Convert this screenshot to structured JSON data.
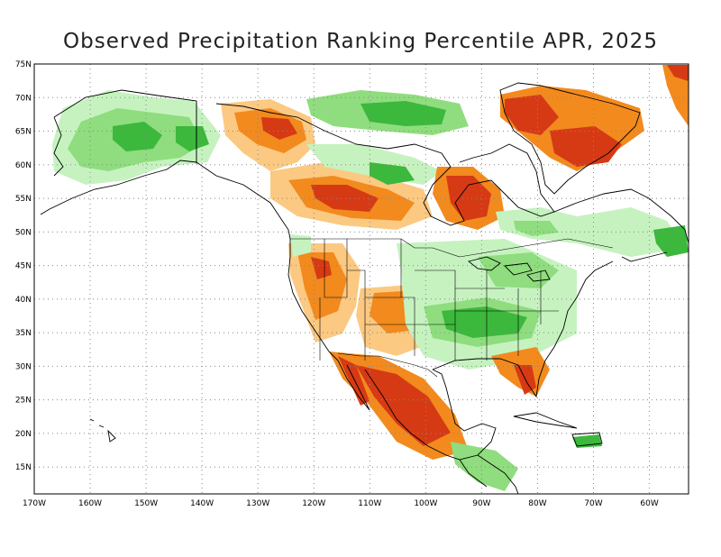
{
  "title": "Observed Precipitation Ranking Percentile APR, 2025",
  "map": {
    "projection": "cylindrical equidistant",
    "lon_range": [
      -170,
      -53
    ],
    "lat_range": [
      11,
      75
    ],
    "lat_ticks": [
      {
        "value": 75,
        "label": "75N"
      },
      {
        "value": 70,
        "label": "70N"
      },
      {
        "value": 65,
        "label": "65N"
      },
      {
        "value": 60,
        "label": "60N"
      },
      {
        "value": 55,
        "label": "55N"
      },
      {
        "value": 50,
        "label": "50N"
      },
      {
        "value": 45,
        "label": "45N"
      },
      {
        "value": 40,
        "label": "40N"
      },
      {
        "value": 35,
        "label": "35N"
      },
      {
        "value": 30,
        "label": "30N"
      },
      {
        "value": 25,
        "label": "25N"
      },
      {
        "value": 20,
        "label": "20N"
      },
      {
        "value": 15,
        "label": "15N"
      }
    ],
    "lon_ticks": [
      {
        "value": -170,
        "label": "170W"
      },
      {
        "value": -160,
        "label": "160W"
      },
      {
        "value": -150,
        "label": "150W"
      },
      {
        "value": -140,
        "label": "140W"
      },
      {
        "value": -130,
        "label": "130W"
      },
      {
        "value": -120,
        "label": "120W"
      },
      {
        "value": -110,
        "label": "110W"
      },
      {
        "value": -100,
        "label": "100W"
      },
      {
        "value": -90,
        "label": "90W"
      },
      {
        "value": -80,
        "label": "80W"
      },
      {
        "value": -70,
        "label": "70W"
      },
      {
        "value": -60,
        "label": "60W"
      }
    ],
    "grid": true,
    "colors": {
      "very_dry": "#d63a14",
      "dry": "#f28a1e",
      "slightly_dry": "#fbc982",
      "slightly_wet": "#c6f2c0",
      "wet": "#8fdd7e",
      "very_wet": "#3cb83c",
      "outline": "#000000",
      "background": "#ffffff"
    }
  }
}
